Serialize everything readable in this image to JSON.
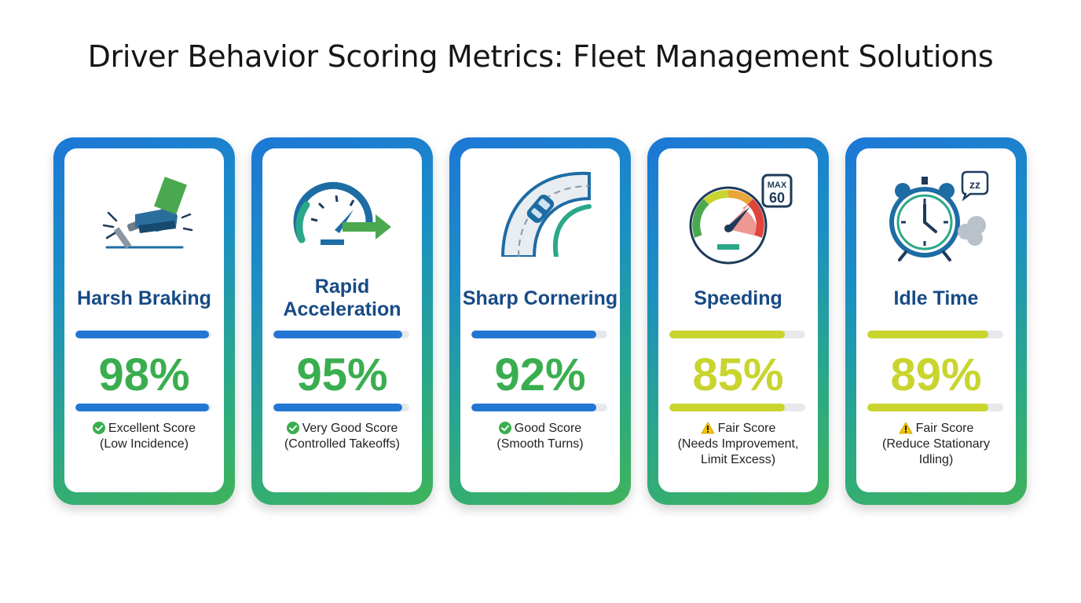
{
  "title": "Driver Behavior Scoring Metrics: Fleet Management Solutions",
  "colors": {
    "blue_bar": "#2277d4",
    "green_score": "#3aae4f",
    "yellow_bar": "#c9d42e",
    "yellow_score": "#c9d42e",
    "title_blue": "#174a86",
    "ok_green": "#3aae4f",
    "warn_yellow": "#f2c500"
  },
  "cards": [
    {
      "title": "Harsh Braking",
      "icon": "brake-pedal-icon",
      "score": "98%",
      "percent": 98,
      "tone": "green",
      "status_icon": "check-circle-icon",
      "status_line1": "Excellent Score",
      "status_line2": "(Low Incidence)",
      "status_line3": ""
    },
    {
      "title": "Rapid Acceleration",
      "icon": "speedometer-arrow-icon",
      "score": "95%",
      "percent": 95,
      "tone": "green",
      "status_icon": "check-circle-icon",
      "status_line1": "Very Good Score",
      "status_line2": "(Controlled Takeoffs)",
      "status_line3": ""
    },
    {
      "title": "Sharp Cornering",
      "icon": "curved-road-car-icon",
      "score": "92%",
      "percent": 92,
      "tone": "green",
      "status_icon": "check-circle-icon",
      "status_line1": "Good Score",
      "status_line2": "(Smooth Turns)",
      "status_line3": ""
    },
    {
      "title": "Speeding",
      "icon": "speed-gauge-max60-icon",
      "max_label": "MAX",
      "max_value": "60",
      "score": "85%",
      "percent": 85,
      "tone": "yellow",
      "status_icon": "warning-triangle-icon",
      "status_line1": "Fair Score",
      "status_line2": "(Needs Improvement,",
      "status_line3": "Limit Excess)"
    },
    {
      "title": "Idle Time",
      "icon": "alarm-clock-exhaust-icon",
      "zz_label": "zz",
      "score": "89%",
      "percent": 89,
      "tone": "yellow",
      "status_icon": "warning-triangle-icon",
      "status_line1": "Fair Score",
      "status_line2": "(Reduce Stationary",
      "status_line3": "Idling)"
    }
  ]
}
